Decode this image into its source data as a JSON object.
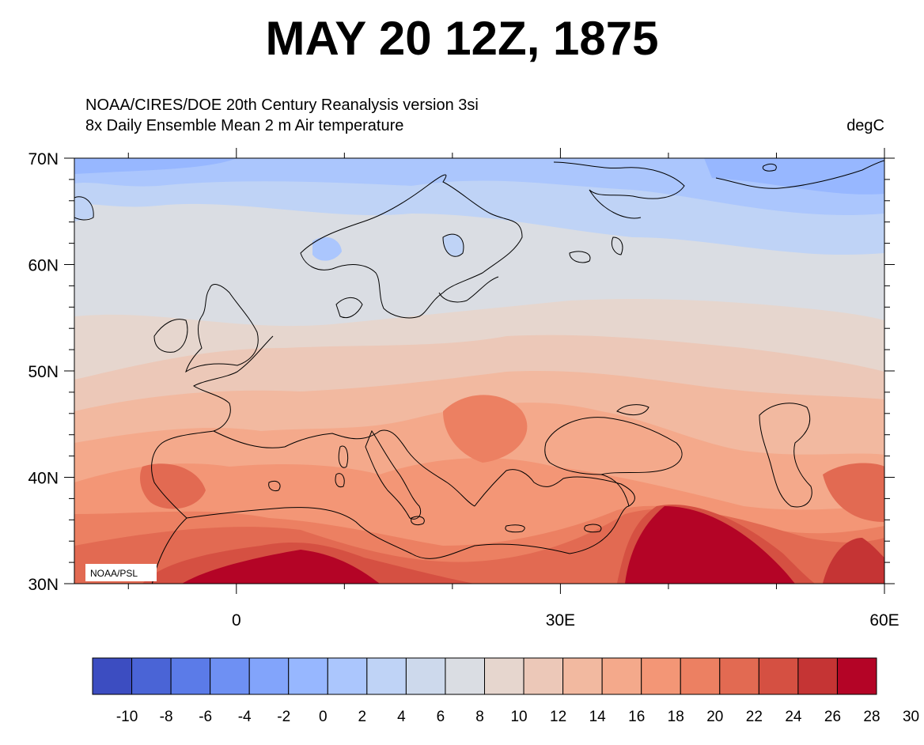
{
  "title": "MAY 20 12Z, 1875",
  "subtitle_line1": "NOAA/CIRES/DOE 20th Century Reanalysis version 3si",
  "subtitle_line2": "8x Daily Ensemble Mean  2 m Air temperature",
  "units": "degC",
  "credit": "NOAA/PSL",
  "map_extent": {
    "lon": [
      -15,
      60
    ],
    "lat": [
      30,
      70
    ]
  },
  "lat_ticks": [
    {
      "value": 70,
      "label": "70N"
    },
    {
      "value": 60,
      "label": "60N"
    },
    {
      "value": 50,
      "label": "50N"
    },
    {
      "value": 40,
      "label": "40N"
    },
    {
      "value": 30,
      "label": "30N"
    }
  ],
  "lon_ticks": [
    {
      "value": 0,
      "label": "0"
    },
    {
      "value": 30,
      "label": "30E"
    },
    {
      "value": 60,
      "label": "60E"
    }
  ],
  "colorbar": {
    "labels": [
      "-10",
      "-8",
      "-6",
      "-4",
      "-2",
      "0",
      "2",
      "4",
      "6",
      "8",
      "10",
      "12",
      "14",
      "16",
      "18",
      "20",
      "22",
      "24",
      "26",
      "28",
      "30"
    ],
    "colors": [
      "#3c4dc1",
      "#4a64d6",
      "#5b7be8",
      "#6e90f3",
      "#82a4fb",
      "#97b7ff",
      "#abc6fd",
      "#bfd3f6",
      "#cdd9ec",
      "#dadde3",
      "#e6d6ce",
      "#ecc8b8",
      "#f2b9a0",
      "#f4a98b",
      "#f39676",
      "#ec8062",
      "#e26a52",
      "#d55042",
      "#c53434",
      "#b40426"
    ]
  }
}
